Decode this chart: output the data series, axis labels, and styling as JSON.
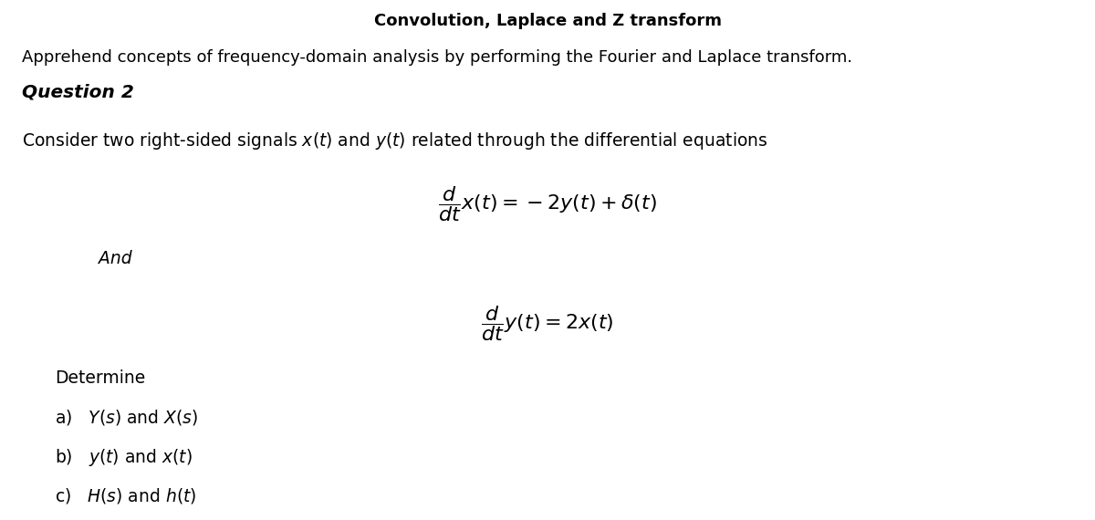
{
  "title": "Convolution, Laplace and Z transform",
  "subtitle": "Apprehend concepts of frequency-domain analysis by performing the Fourier and Laplace transform.",
  "question_label": "Question 2",
  "intro_text": "Consider two right-sided signals $x(t)$ and $y(t)$ related through the differential equations",
  "and_text": "And",
  "determine_text": "Determine",
  "bg_color": "#ffffff",
  "text_color": "#000000",
  "figsize": [
    12.0,
    5.7
  ],
  "dpi": 100
}
